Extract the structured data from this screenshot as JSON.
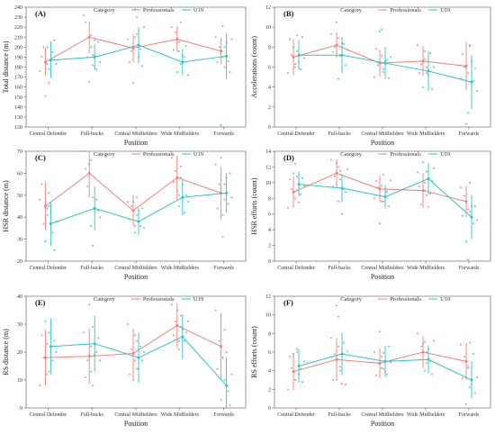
{
  "legend": {
    "title": "Category",
    "entries": [
      {
        "name": "Professionals",
        "color": "#f0807a"
      },
      {
        "name": "U19",
        "color": "#2ec4cf"
      }
    ]
  },
  "chart_data": [
    {
      "type": "line",
      "panel_label": "(A)",
      "categories": [
        "Central Defender",
        "Full-backs",
        "Central Midfielders",
        "Wide Midfielders",
        "Forwards"
      ],
      "xlabel": "Position",
      "ylabel": "Total distance (m)",
      "ylim": [
        120,
        240
      ],
      "yticks": [
        120,
        130,
        140,
        150,
        160,
        170,
        180,
        190,
        200,
        210,
        220,
        230,
        240
      ],
      "series": [
        {
          "name": "Professionals",
          "color": "#f0807a",
          "values": [
            185,
            210,
            199,
            208,
            196
          ],
          "err": [
            14,
            16,
            14,
            13,
            13
          ],
          "points": [
            [
              176,
              190,
              200,
              183,
              164,
              205
            ],
            [
              232,
              225,
              190,
              212,
              182,
              207
            ],
            [
              208,
              185,
              196,
              210,
              230,
              190
            ],
            [
              220,
              197,
              215,
              205,
              225,
              192
            ],
            [
              210,
              185,
              200,
              190,
              180,
              205
            ]
          ]
        },
        {
          "name": "U19",
          "color": "#2ec4cf",
          "values": [
            187,
            190,
            202,
            185,
            191
          ],
          "err": [
            18,
            13,
            18,
            13,
            23
          ],
          "points": [
            [
              151,
              200,
              178,
              195,
              207,
              183
            ],
            [
              165,
              200,
              192,
              178,
              205,
              185
            ],
            [
              164,
              238,
              213,
              198,
              181,
              220
            ],
            [
              175,
              196,
              183,
              190,
              201,
              172
            ],
            [
              122,
              221,
              200,
              186,
              175,
              208
            ]
          ]
        }
      ]
    },
    {
      "type": "line",
      "panel_label": "(B)",
      "categories": [
        "Central Defender",
        "Full-backs",
        "Central Midfielders",
        "Wide Midfielders",
        "Forwards"
      ],
      "xlabel": "Position",
      "ylabel": "Accelerations (count)",
      "ylim": [
        0,
        12
      ],
      "yticks": [
        0,
        2,
        4,
        6,
        8,
        10,
        12
      ],
      "series": [
        {
          "name": "Professionals",
          "color": "#f0807a",
          "values": [
            7.0,
            8.2,
            6.4,
            6.6,
            6.1
          ],
          "err": [
            1.8,
            1.3,
            1.3,
            1.5,
            2.4
          ],
          "points": [
            [
              5.4,
              8.8,
              7.2,
              6.0,
              9.2,
              6.5
            ],
            [
              9.3,
              7.5,
              8.0,
              8.9,
              7.1,
              8.4
            ],
            [
              5.0,
              7.8,
              6.2,
              7.1,
              5.5,
              6.6
            ],
            [
              8.2,
              5.4,
              6.3,
              7.6,
              6.0,
              5.2
            ],
            [
              4.9,
              7.3,
              6.0,
              5.4,
              8.2,
              6.6
            ]
          ]
        },
        {
          "name": "U19",
          "color": "#2ec4cf",
          "values": [
            7.2,
            7.2,
            6.4,
            5.6,
            4.5
          ],
          "err": [
            1.5,
            1.8,
            1.6,
            2.0,
            2.7
          ],
          "points": [
            [
              8.0,
              6.3,
              7.6,
              5.8,
              9.0,
              6.9
            ],
            [
              10.5,
              4.8,
              7.2,
              8.3,
              6.2,
              7.7
            ],
            [
              9.6,
              9.8,
              5.8,
              6.7,
              4.9,
              7.0
            ],
            [
              4.0,
              6.8,
              5.4,
              7.4,
              3.8,
              6.0
            ],
            [
              0.3,
              1.4,
              8.1,
              4.6,
              5.9,
              3.6
            ]
          ]
        }
      ]
    },
    {
      "type": "line",
      "panel_label": "(C)",
      "categories": [
        "Central Defender",
        "Full-backs",
        "Central Midfielders",
        "Wide Midfielders",
        "Forwards"
      ],
      "xlabel": "Position",
      "ylabel": "HSR distance (m)",
      "ylim": [
        20,
        70
      ],
      "yticks": [
        20,
        30,
        40,
        50,
        60,
        70
      ],
      "series": [
        {
          "name": "Professionals",
          "color": "#f0807a",
          "values": [
            45,
            60,
            43,
            58,
            51
          ],
          "err": [
            11,
            11,
            7,
            10,
            12
          ],
          "points": [
            [
              48,
              55,
              37,
              44,
              51,
              42
            ],
            [
              70,
              62,
              54,
              66,
              49,
              58
            ],
            [
              47,
              39,
              45,
              36,
              49,
              43
            ],
            [
              67,
              56,
              61,
              50,
              63,
              55
            ],
            [
              64,
              44,
              55,
              31,
              48,
              58
            ]
          ]
        },
        {
          "name": "U19",
          "color": "#2ec4cf",
          "values": [
            37,
            44,
            38,
            49,
            51
          ],
          "err": [
            10,
            10,
            6,
            8,
            9
          ],
          "points": [
            [
              29,
              41,
              45,
              33,
              25,
              38
            ],
            [
              64,
              36,
              27,
              48,
              43,
              40
            ],
            [
              47,
              33,
              41,
              36,
              44,
              35
            ],
            [
              52,
              45,
              58,
              42,
              50,
              47
            ],
            [
              67,
              41,
              55,
              46,
              60,
              49
            ]
          ]
        }
      ]
    },
    {
      "type": "line",
      "panel_label": "(D)",
      "categories": [
        "Central Defender",
        "Full-backs",
        "Central Midfielders",
        "Wide Midfielders",
        "Forwards"
      ],
      "xlabel": "Position",
      "ylabel": "HSR efforts (count)",
      "ylim": [
        0,
        14
      ],
      "yticks": [
        0,
        2,
        4,
        6,
        8,
        10,
        12,
        14
      ],
      "series": [
        {
          "name": "Professionals",
          "color": "#f0807a",
          "values": [
            8.8,
            11.2,
            9.2,
            9.0,
            7.6
          ],
          "err": [
            2.0,
            1.8,
            1.7,
            2.2,
            2.0
          ],
          "points": [
            [
              6.8,
              10.4,
              9.2,
              8.0,
              10.8,
              7.5
            ],
            [
              12.9,
              9.5,
              10.8,
              12.0,
              11.5,
              6.0
            ],
            [
              8.0,
              10.2,
              9.4,
              7.6,
              11.0,
              8.8
            ],
            [
              11.3,
              9.5,
              7.2,
              10.0,
              8.4,
              6.9
            ],
            [
              9.4,
              5.8,
              8.3,
              6.6,
              10.0,
              7.0
            ]
          ]
        },
        {
          "name": "U19",
          "color": "#2ec4cf",
          "values": [
            9.8,
            9.3,
            8.2,
            10.5,
            5.6
          ],
          "err": [
            1.6,
            1.8,
            1.5,
            2.0,
            2.8
          ],
          "points": [
            [
              11.2,
              12.4,
              9.0,
              8.5,
              10.6,
              9.6
            ],
            [
              12.5,
              7.6,
              10.4,
              9.2,
              8.8,
              11.7
            ],
            [
              4.8,
              9.6,
              7.6,
              8.9,
              7.0,
              10.3
            ],
            [
              12.6,
              9.0,
              11.4,
              8.6,
              10.2,
              11.8
            ],
            [
              2.5,
              0.2,
              6.3,
              4.8,
              7.0,
              5.2
            ]
          ]
        }
      ]
    },
    {
      "type": "line",
      "panel_label": "(E)",
      "categories": [
        "Central Defender",
        "Full-backs",
        "Central Midfielders",
        "Wide Midfielders",
        "Forwards"
      ],
      "xlabel": "Position",
      "ylabel": "RS distance (m)",
      "ylim": [
        0,
        40
      ],
      "yticks": [
        0,
        10,
        20,
        30,
        40
      ],
      "series": [
        {
          "name": "Professionals",
          "color": "#f0807a",
          "values": [
            18,
            18.5,
            19.5,
            29.5,
            22
          ],
          "err": [
            10,
            10,
            9,
            8,
            12
          ],
          "points": [
            [
              8,
              26,
              18,
              23,
              13,
              20
            ],
            [
              27,
              11,
              17,
              22,
              8,
              19
            ],
            [
              30,
              12,
              21,
              17,
              24,
              14
            ],
            [
              37,
              26,
              31,
              24,
              33,
              28
            ],
            [
              35,
              14,
              24,
              18,
              28,
              20
            ]
          ]
        },
        {
          "name": "U19",
          "color": "#2ec4cf",
          "values": [
            22,
            23,
            18,
            25.5,
            8
          ],
          "err": [
            10,
            10,
            9,
            8,
            10
          ],
          "points": [
            [
              31,
              12,
              27,
              17,
              24,
              20
            ],
            [
              37,
              13,
              29,
              20,
              25,
              17
            ],
            [
              10,
              26,
              14,
              22,
              17,
              20
            ],
            [
              35,
              21,
              29,
              24,
              27,
              31
            ],
            [
              3,
              18,
              10,
              6,
              1,
              12
            ]
          ]
        }
      ]
    },
    {
      "type": "line",
      "panel_label": "(F)",
      "categories": [
        "Central Defender",
        "Full-backs",
        "Central Midfielders",
        "Wide Midfielders",
        "Forwards"
      ],
      "xlabel": "Position",
      "ylabel": "RS efforts (count)",
      "ylim": [
        0,
        12
      ],
      "yticks": [
        0,
        2,
        4,
        6,
        8,
        10,
        12
      ],
      "series": [
        {
          "name": "Professionals",
          "color": "#f0807a",
          "values": [
            3.9,
            5.2,
            4.8,
            6.0,
            5.0
          ],
          "err": [
            2.0,
            2.3,
            1.6,
            1.7,
            2.0
          ],
          "points": [
            [
              2.0,
              5.5,
              4.3,
              3.0,
              6.0,
              3.6
            ],
            [
              7.5,
              3.0,
              5.8,
              6.6,
              4.4,
              2.6
            ],
            [
              6.0,
              3.5,
              4.8,
              5.5,
              4.2,
              3.9
            ],
            [
              8.0,
              5.2,
              6.6,
              7.1,
              4.8,
              6.3
            ],
            [
              6.8,
              3.2,
              5.5,
              4.3,
              7.0,
              2.5
            ]
          ]
        },
        {
          "name": "U19",
          "color": "#2ec4cf",
          "values": [
            4.5,
            5.8,
            5.0,
            5.2,
            3.0
          ],
          "err": [
            1.8,
            2.3,
            1.7,
            1.5,
            2.0
          ],
          "points": [
            [
              5.8,
              3.0,
              6.3,
              4.2,
              2.8,
              5.0
            ],
            [
              11.0,
              9.8,
              4.0,
              7.0,
              2.5,
              6.1
            ],
            [
              8.2,
              4.3,
              5.9,
              3.6,
              6.6,
              4.9
            ],
            [
              6.9,
              4.0,
              6.0,
              5.0,
              3.6,
              7.2
            ],
            [
              0.4,
              4.5,
              2.2,
              5.8,
              1.6,
              3.3
            ]
          ]
        }
      ]
    }
  ]
}
